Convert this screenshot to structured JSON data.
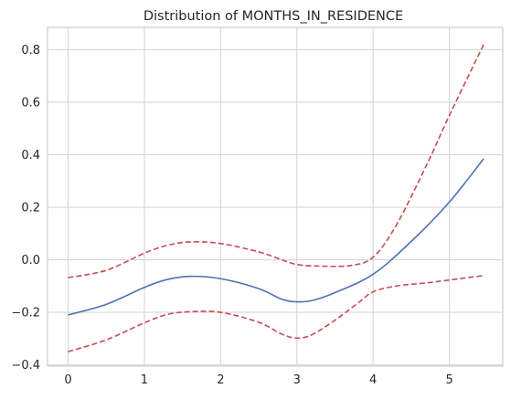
{
  "chart_data": {
    "type": "line",
    "title": "Distribution of MONTHS_IN_RESIDENCE",
    "xlabel": "",
    "ylabel": "",
    "xlim": [
      -0.27,
      5.7
    ],
    "ylim": [
      -0.405,
      0.885
    ],
    "xticks": [
      0,
      1,
      2,
      3,
      4,
      5
    ],
    "xtick_labels": [
      "0",
      "1",
      "2",
      "3",
      "4",
      "5"
    ],
    "yticks": [
      -0.4,
      -0.2,
      0.0,
      0.2,
      0.4,
      0.6,
      0.8
    ],
    "ytick_labels": [
      "−0.4",
      "−0.2",
      "0.0",
      "0.2",
      "0.4",
      "0.6",
      "0.8"
    ],
    "grid": true,
    "legend": "none",
    "series": [
      {
        "role": "estimate",
        "color": "#4c72b0",
        "style": "solid",
        "x": [
          0,
          0.5,
          1,
          1.3,
          1.6,
          2,
          2.5,
          2.8,
          3,
          3.2,
          3.5,
          4,
          4.5,
          5,
          5.45
        ],
        "y": [
          -0.21,
          -0.17,
          -0.105,
          -0.075,
          -0.063,
          -0.072,
          -0.11,
          -0.15,
          -0.16,
          -0.155,
          -0.125,
          -0.055,
          0.07,
          0.22,
          0.385
        ]
      },
      {
        "role": "upper",
        "color": "#c44e52",
        "style": "dashed",
        "x": [
          0,
          0.5,
          1,
          1.3,
          1.6,
          2,
          2.5,
          2.8,
          3,
          3.3,
          3.7,
          4,
          4.3,
          4.7,
          5,
          5.45
        ],
        "y": [
          -0.068,
          -0.04,
          0.025,
          0.055,
          0.068,
          0.062,
          0.03,
          0.0,
          -0.018,
          -0.024,
          -0.022,
          0.01,
          0.13,
          0.36,
          0.55,
          0.82
        ]
      },
      {
        "role": "lower",
        "color": "#c44e52",
        "style": "dashed",
        "x": [
          0,
          0.5,
          1,
          1.3,
          1.6,
          2,
          2.5,
          2.8,
          3,
          3.2,
          3.5,
          3.8,
          4,
          4.3,
          4.7,
          5,
          5.45
        ],
        "y": [
          -0.35,
          -0.305,
          -0.24,
          -0.208,
          -0.198,
          -0.2,
          -0.238,
          -0.283,
          -0.298,
          -0.285,
          -0.23,
          -0.165,
          -0.122,
          -0.1,
          -0.088,
          -0.077,
          -0.06
        ]
      }
    ]
  }
}
